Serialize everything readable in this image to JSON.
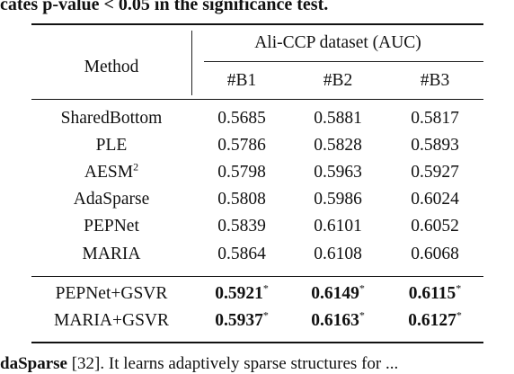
{
  "caption_top": "cates p-value < 0.05 in the significance test.",
  "caption_bottom": {
    "bold_part": "daSparse",
    "rest": " [32]. It learns adaptively sparse structures for ..."
  },
  "table": {
    "method_header": "Method",
    "group_header": "Ali-CCP dataset (AUC)",
    "columns": [
      "#B1",
      "#B2",
      "#B3"
    ],
    "baselines": [
      {
        "method": "SharedBottom",
        "sup": "",
        "values": [
          "0.5685",
          "0.5881",
          "0.5817"
        ]
      },
      {
        "method": "PLE",
        "sup": "",
        "values": [
          "0.5786",
          "0.5828",
          "0.5893"
        ]
      },
      {
        "method": "AESM",
        "sup": "2",
        "values": [
          "0.5798",
          "0.5963",
          "0.5927"
        ]
      },
      {
        "method": "AdaSparse",
        "sup": "",
        "values": [
          "0.5808",
          "0.5986",
          "0.6024"
        ]
      },
      {
        "method": "PEPNet",
        "sup": "",
        "values": [
          "0.5839",
          "0.6101",
          "0.6052"
        ]
      },
      {
        "method": "MARIA",
        "sup": "",
        "values": [
          "0.5864",
          "0.6108",
          "0.6068"
        ]
      }
    ],
    "ours": [
      {
        "method": "PEPNet+GSVR",
        "values": [
          "0.5921",
          "0.6149",
          "0.6115"
        ],
        "mark": "*"
      },
      {
        "method": "MARIA+GSVR",
        "values": [
          "0.5937",
          "0.6163",
          "0.6127"
        ],
        "mark": "*"
      }
    ]
  }
}
